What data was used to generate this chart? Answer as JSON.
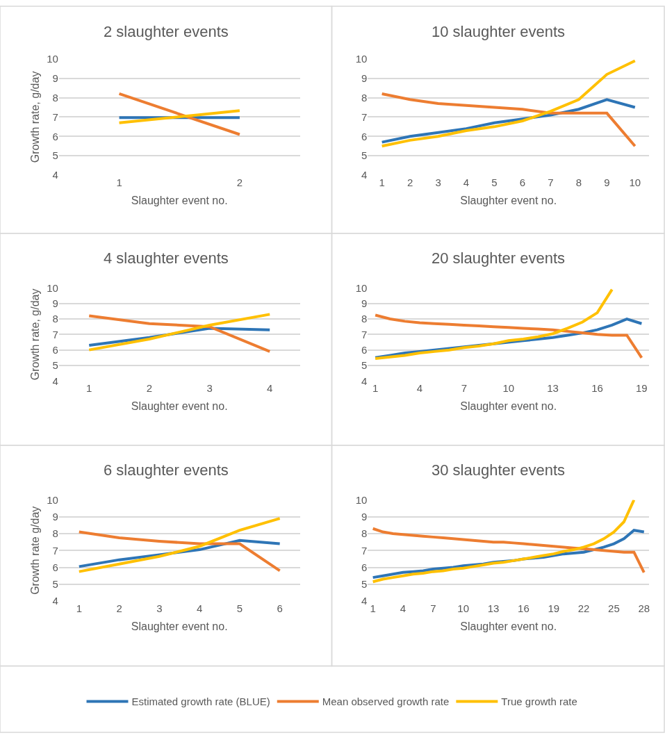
{
  "chart_data": [
    {
      "type": "line",
      "title": "2 slaughter events",
      "xlabel": "Slaughter event no.",
      "ylabel": "Growth rate, g/day",
      "x": [
        1,
        2
      ],
      "xlim": [
        0.5,
        2.5
      ],
      "xticks": [
        1,
        2
      ],
      "ylim": [
        4,
        10
      ],
      "yticks": [
        4,
        5,
        6,
        7,
        8,
        9,
        10
      ],
      "grid": "y",
      "legend": "bottom",
      "series": [
        {
          "name": "Estimated growth rate (BLUE)",
          "color": "#2e75b6",
          "values": [
            6.97,
            6.97
          ]
        },
        {
          "name": "Mean observed growth rate",
          "color": "#ed7d31",
          "values": [
            8.2,
            6.1
          ]
        },
        {
          "name": "True growth rate",
          "color": "#ffc000",
          "values": [
            6.7,
            7.33
          ]
        }
      ]
    },
    {
      "type": "line",
      "title": "10 slaughter events",
      "xlabel": "Slaughter event no.",
      "x": [
        1,
        2,
        3,
        4,
        5,
        6,
        7,
        8,
        9,
        10
      ],
      "xlim": [
        0.5,
        10.5
      ],
      "xticks": [
        1,
        2,
        3,
        4,
        5,
        6,
        7,
        8,
        9,
        10
      ],
      "ylim": [
        4,
        10
      ],
      "yticks": [
        4,
        5,
        6,
        7,
        8,
        9,
        10
      ],
      "grid": "y",
      "series": [
        {
          "color": "#2e75b6",
          "values": [
            5.7,
            6.0,
            6.2,
            6.4,
            6.7,
            6.9,
            7.1,
            7.4,
            7.9,
            7.5
          ]
        },
        {
          "color": "#ed7d31",
          "values": [
            8.2,
            7.9,
            7.7,
            7.6,
            7.5,
            7.4,
            7.2,
            7.2,
            7.2,
            5.5
          ]
        },
        {
          "color": "#ffc000",
          "values": [
            5.5,
            5.8,
            6.0,
            6.3,
            6.5,
            6.8,
            7.3,
            7.9,
            9.2,
            9.9
          ]
        }
      ]
    },
    {
      "type": "line",
      "title": "4 slaughter events",
      "xlabel": "Slaughter event no.",
      "ylabel": "Growth rate, g/day",
      "x": [
        1,
        2,
        3,
        4
      ],
      "xlim": [
        0.5,
        4.5
      ],
      "xticks": [
        1,
        2,
        3,
        4
      ],
      "ylim": [
        4,
        10
      ],
      "yticks": [
        4,
        5,
        6,
        7,
        8,
        9,
        10
      ],
      "grid": "y",
      "series": [
        {
          "color": "#2e75b6",
          "values": [
            6.3,
            6.8,
            7.4,
            7.3
          ]
        },
        {
          "color": "#ed7d31",
          "values": [
            8.2,
            7.7,
            7.5,
            5.9
          ]
        },
        {
          "color": "#ffc000",
          "values": [
            6.0,
            6.7,
            7.6,
            8.3
          ]
        }
      ]
    },
    {
      "type": "line",
      "title": "20 slaughter events",
      "xlabel": "Slaughter event no.",
      "x": [
        1,
        2,
        3,
        4,
        5,
        6,
        7,
        8,
        9,
        10,
        11,
        12,
        13,
        14,
        15,
        16,
        17,
        18,
        19
      ],
      "xlim": [
        0.5,
        19.5
      ],
      "xticks": [
        1,
        4,
        7,
        10,
        13,
        16,
        19
      ],
      "ylim": [
        4,
        10
      ],
      "yticks": [
        4,
        5,
        6,
        7,
        8,
        9,
        10
      ],
      "grid": "y",
      "series": [
        {
          "color": "#2e75b6",
          "values": [
            5.5,
            5.65,
            5.8,
            5.9,
            6.0,
            6.1,
            6.2,
            6.3,
            6.4,
            6.5,
            6.6,
            6.7,
            6.8,
            6.95,
            7.1,
            7.3,
            7.6,
            8.0,
            7.7
          ]
        },
        {
          "color": "#ed7d31",
          "values": [
            8.25,
            8.0,
            7.85,
            7.75,
            7.7,
            7.65,
            7.6,
            7.55,
            7.5,
            7.45,
            7.4,
            7.35,
            7.3,
            7.2,
            7.1,
            7.0,
            6.95,
            6.95,
            5.5
          ]
        },
        {
          "color": "#ffc000",
          "values": [
            5.45,
            5.55,
            5.65,
            5.8,
            5.9,
            6.0,
            6.15,
            6.25,
            6.4,
            6.6,
            6.7,
            6.85,
            7.05,
            7.4,
            7.8,
            8.4,
            9.9,
            null,
            null
          ]
        }
      ]
    },
    {
      "type": "line",
      "title": "6 slaughter events",
      "xlabel": "Slaughter event no.",
      "ylabel": "Growth rate g/day",
      "x": [
        1,
        2,
        3,
        4,
        5,
        6
      ],
      "xlim": [
        0.5,
        6.5
      ],
      "xticks": [
        1,
        2,
        3,
        4,
        5,
        6
      ],
      "ylim": [
        4,
        10
      ],
      "yticks": [
        4,
        5,
        6,
        7,
        8,
        9,
        10
      ],
      "grid": "y",
      "series": [
        {
          "color": "#2e75b6",
          "values": [
            6.05,
            6.45,
            6.75,
            7.05,
            7.6,
            7.4
          ]
        },
        {
          "color": "#ed7d31",
          "values": [
            8.1,
            7.75,
            7.55,
            7.4,
            7.4,
            5.8
          ]
        },
        {
          "color": "#ffc000",
          "values": [
            5.75,
            6.2,
            6.65,
            7.25,
            8.2,
            8.9
          ]
        }
      ]
    },
    {
      "type": "line",
      "title": "30 slaughter events",
      "xlabel": "Slaughter event no.",
      "x": [
        1,
        2,
        3,
        4,
        5,
        6,
        7,
        8,
        9,
        10,
        11,
        12,
        13,
        14,
        15,
        16,
        17,
        18,
        19,
        20,
        21,
        22,
        23,
        24,
        25,
        26,
        27,
        28
      ],
      "xlim": [
        0.5,
        28.5
      ],
      "xticks": [
        1,
        4,
        7,
        10,
        13,
        16,
        19,
        22,
        25,
        28
      ],
      "ylim": [
        4,
        10
      ],
      "yticks": [
        4,
        5,
        6,
        7,
        8,
        9,
        10
      ],
      "grid": "y",
      "series": [
        {
          "color": "#2e75b6",
          "values": [
            5.4,
            5.5,
            5.6,
            5.7,
            5.75,
            5.8,
            5.9,
            5.95,
            6.0,
            6.1,
            6.15,
            6.2,
            6.3,
            6.35,
            6.4,
            6.5,
            6.55,
            6.6,
            6.7,
            6.8,
            6.85,
            6.9,
            7.05,
            7.2,
            7.4,
            7.7,
            8.2,
            8.1
          ]
        },
        {
          "color": "#ed7d31",
          "values": [
            8.3,
            8.1,
            8.0,
            7.95,
            7.9,
            7.85,
            7.8,
            7.75,
            7.7,
            7.65,
            7.6,
            7.55,
            7.5,
            7.5,
            7.45,
            7.4,
            7.35,
            7.3,
            7.25,
            7.2,
            7.15,
            7.1,
            7.05,
            7.0,
            6.95,
            6.9,
            6.9,
            5.7
          ]
        },
        {
          "color": "#ffc000",
          "values": [
            5.15,
            5.3,
            5.4,
            5.5,
            5.6,
            5.65,
            5.75,
            5.8,
            5.9,
            5.95,
            6.05,
            6.15,
            6.25,
            6.3,
            6.4,
            6.5,
            6.6,
            6.7,
            6.8,
            6.95,
            7.05,
            7.2,
            7.4,
            7.7,
            8.1,
            8.7,
            10.0,
            null
          ]
        }
      ]
    }
  ]
}
